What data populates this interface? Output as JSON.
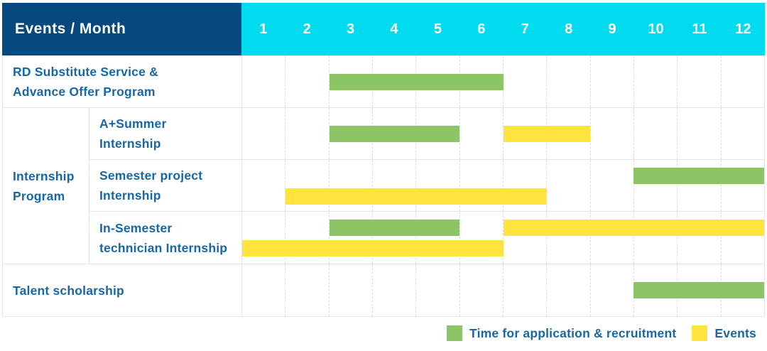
{
  "header": {
    "col_label": "Events / Month",
    "months": [
      "1",
      "2",
      "3",
      "4",
      "5",
      "6",
      "7",
      "8",
      "9",
      "10",
      "11",
      "12"
    ]
  },
  "legend": {
    "items": [
      {
        "color_key": "application_green",
        "label": "Time for application & recruitment"
      },
      {
        "color_key": "event_yellow",
        "label": "Events"
      }
    ]
  },
  "colors": {
    "header_bg": "#05497F",
    "months_bg": "#00DBEF",
    "label_text": "#1667A9",
    "application_green": "#8BC566",
    "event_yellow": "#FFE33E",
    "grid_line": "#E2E5E9",
    "month_divider": "#D9DDE2",
    "header_text": "#FFFFFF"
  },
  "chart_data": {
    "type": "gantt",
    "title": "",
    "x_axis_label": "Events / Month",
    "months": [
      1,
      2,
      3,
      4,
      5,
      6,
      7,
      8,
      9,
      10,
      11,
      12
    ],
    "legend": {
      "application": "Time for application & recruitment",
      "event": "Events"
    },
    "sections": [
      {
        "kind": "single",
        "label": "RD Substitute Service &\nAdvance Offer Program",
        "bars": [
          {
            "kind": "application",
            "from_month": 3,
            "to_month": 6,
            "track": "center"
          }
        ]
      },
      {
        "kind": "group",
        "label": "Internship\nProgram",
        "rows": [
          {
            "label": "A+Summer\nInternship",
            "bars": [
              {
                "kind": "application",
                "from_month": 3,
                "to_month": 5,
                "track": "center"
              },
              {
                "kind": "event",
                "from_month": 7,
                "to_month": 8,
                "track": "center"
              }
            ]
          },
          {
            "label": "Semester project\nInternship",
            "bars": [
              {
                "kind": "application",
                "from_month": 10,
                "to_month": 12,
                "track": "upper"
              },
              {
                "kind": "event",
                "from_month": 2,
                "to_month": 7,
                "track": "lower"
              }
            ]
          },
          {
            "label": "In-Semester\ntechnician Internship",
            "bars": [
              {
                "kind": "application",
                "from_month": 3,
                "to_month": 5,
                "track": "upper"
              },
              {
                "kind": "event",
                "from_month": 7,
                "to_month": 12,
                "track": "upper"
              },
              {
                "kind": "event",
                "from_month": 1,
                "to_month": 6,
                "track": "lower"
              }
            ]
          }
        ]
      },
      {
        "kind": "single",
        "label": "Talent scholarship",
        "bars": [
          {
            "kind": "application",
            "from_month": 10,
            "to_month": 12,
            "track": "center"
          }
        ]
      }
    ]
  }
}
